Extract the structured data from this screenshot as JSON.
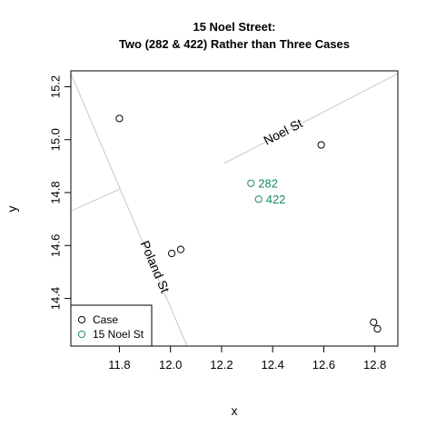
{
  "chart_data": {
    "type": "scatter",
    "title": [
      "15 Noel Street:",
      "Two (282 & 422) Rather than Three Cases"
    ],
    "xlabel": "x",
    "ylabel": "y",
    "xlim": [
      11.61,
      12.89
    ],
    "ylim": [
      14.22,
      15.26
    ],
    "x_ticks": [
      11.8,
      12.0,
      12.2,
      12.4,
      12.6,
      12.8
    ],
    "x_tick_labels": [
      "11.8",
      "12.0",
      "12.2",
      "12.4",
      "12.6",
      "12.8"
    ],
    "y_ticks": [
      14.4,
      14.6,
      14.8,
      15.0,
      15.2
    ],
    "y_tick_labels": [
      "14.4",
      "14.6",
      "14.8",
      "15.0",
      "15.2"
    ],
    "grid": false,
    "legend_position": "bottom-left",
    "series": [
      {
        "name": "Case",
        "color": "#000000",
        "marker": "open-circle",
        "points": [
          {
            "x": 11.8,
            "y": 15.08
          },
          {
            "x": 12.005,
            "y": 14.57
          },
          {
            "x": 12.04,
            "y": 14.585
          },
          {
            "x": 12.59,
            "y": 14.98
          },
          {
            "x": 12.795,
            "y": 14.31
          },
          {
            "x": 12.81,
            "y": 14.285
          }
        ]
      },
      {
        "name": "15 Noel St",
        "color": "#1b8a5a",
        "marker": "open-circle",
        "points": [
          {
            "x": 12.315,
            "y": 14.835,
            "label": "282"
          },
          {
            "x": 12.345,
            "y": 14.775,
            "label": "422"
          }
        ]
      }
    ],
    "streets": [
      {
        "name": "Noel St",
        "line": [
          [
            12.21,
            14.91
          ],
          [
            12.89,
            15.25
          ]
        ],
        "label_at": {
          "x": 12.44,
          "y": 15.03
        }
      },
      {
        "name": "Poland St",
        "line": [
          [
            11.61,
            15.25
          ],
          [
            12.065,
            14.22
          ]
        ],
        "label_at": {
          "x": 11.94,
          "y": 14.52
        }
      },
      {
        "name": "",
        "line": [
          [
            11.61,
            14.73
          ],
          [
            11.805,
            14.815
          ]
        ]
      }
    ],
    "street_color": "#c8c8c8"
  }
}
